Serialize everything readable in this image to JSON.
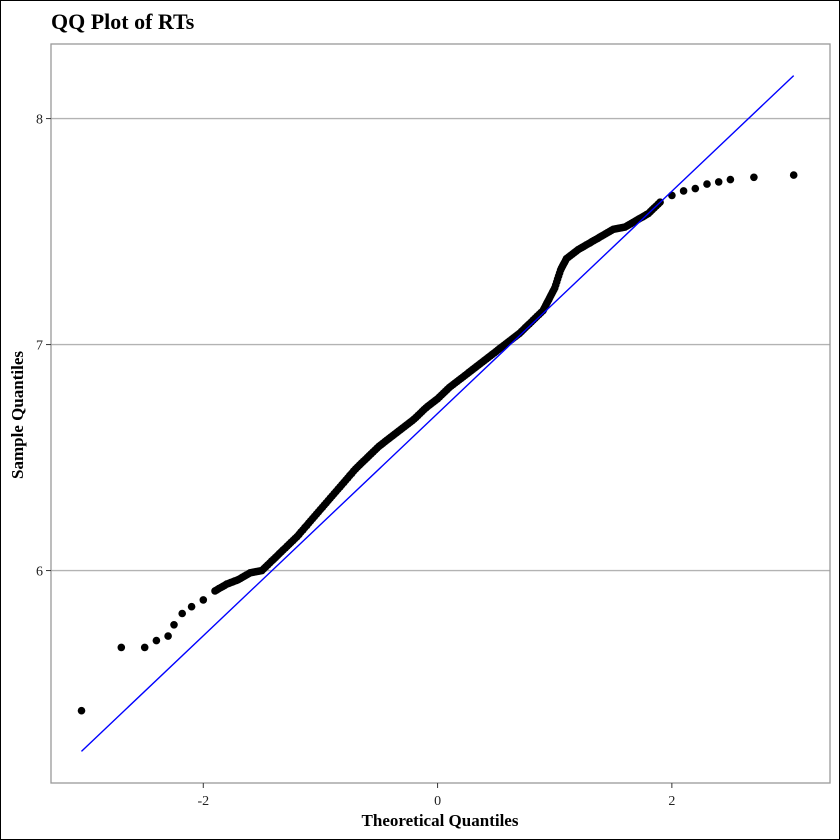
{
  "chart_data": {
    "type": "scatter",
    "title": "QQ Plot of RTs",
    "xlabel": "Theoretical Quantiles",
    "ylabel": "Sample Quantiles",
    "xlim": [
      -3.3,
      3.35
    ],
    "ylim": [
      5.06,
      8.33
    ],
    "x_ticks": [
      -2,
      0,
      2
    ],
    "x_tick_labels": [
      "-2",
      "0",
      "2"
    ],
    "y_ticks": [
      6,
      7,
      8
    ],
    "y_tick_labels": [
      "6",
      "7",
      "8"
    ],
    "grid": "horizontal major",
    "colors": {
      "points": "#000000",
      "line": "#0000ff",
      "grid": "#b3b3b3",
      "panel_border": "#999999"
    },
    "reference_line": {
      "x": [
        -3.04,
        3.04
      ],
      "y": [
        5.2,
        8.19
      ]
    },
    "points_anchors": {
      "x": [
        -3.04,
        -2.7,
        -2.5,
        -2.4,
        -2.3,
        -2.25,
        -2.18,
        -2.1,
        -2.0,
        -1.9,
        -1.8,
        -1.7,
        -1.6,
        -1.5,
        -1.4,
        -1.3,
        -1.2,
        -1.1,
        -1.0,
        -0.9,
        -0.8,
        -0.7,
        -0.6,
        -0.5,
        -0.4,
        -0.3,
        -0.2,
        -0.1,
        0.0,
        0.1,
        0.2,
        0.3,
        0.4,
        0.5,
        0.6,
        0.7,
        0.8,
        0.9,
        0.95,
        1.0,
        1.05,
        1.1,
        1.2,
        1.3,
        1.4,
        1.5,
        1.6,
        1.7,
        1.8,
        1.9,
        2.0,
        2.1,
        2.2,
        2.3,
        2.4,
        2.5,
        2.7,
        3.04
      ],
      "y": [
        5.38,
        5.66,
        5.66,
        5.69,
        5.71,
        5.76,
        5.81,
        5.84,
        5.87,
        5.91,
        5.94,
        5.96,
        5.99,
        6.0,
        6.05,
        6.1,
        6.15,
        6.21,
        6.27,
        6.33,
        6.39,
        6.45,
        6.5,
        6.55,
        6.59,
        6.63,
        6.67,
        6.72,
        6.76,
        6.81,
        6.85,
        6.89,
        6.93,
        6.97,
        7.01,
        7.05,
        7.1,
        7.15,
        7.2,
        7.25,
        7.33,
        7.38,
        7.42,
        7.45,
        7.48,
        7.51,
        7.52,
        7.55,
        7.58,
        7.63,
        7.66,
        7.68,
        7.69,
        7.71,
        7.72,
        7.73,
        7.74,
        7.75
      ]
    }
  }
}
